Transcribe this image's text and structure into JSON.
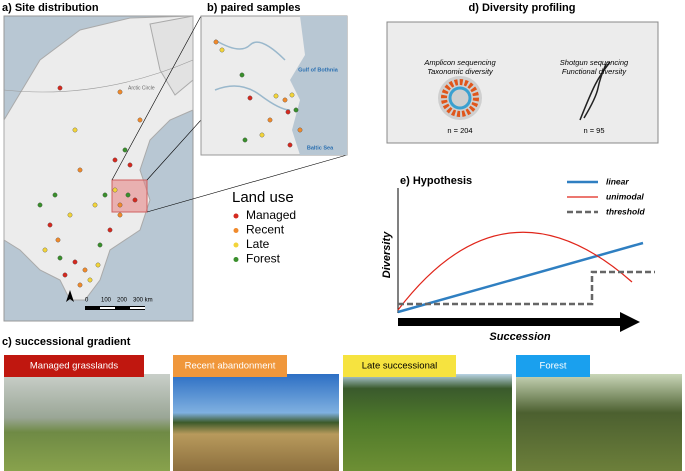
{
  "panel_a": {
    "title": "a) Site distribution",
    "arctic_label": "Arctic Circle",
    "scale_labels": [
      "0",
      "100",
      "200",
      "300 km"
    ]
  },
  "panel_b": {
    "title": "b) paired samples",
    "labels": [
      "Gulf of Bothnia",
      "Baltic Sea"
    ]
  },
  "land_use": {
    "title": "Land use",
    "items": [
      {
        "name": "Managed",
        "color": "#d42a20"
      },
      {
        "name": "Recent",
        "color": "#f08a2c"
      },
      {
        "name": "Late",
        "color": "#f2d43a"
      },
      {
        "name": "Forest",
        "color": "#3a8f2c"
      }
    ]
  },
  "panel_d": {
    "title": "d) Diversity profiling",
    "methods": [
      {
        "name": "Amplicon sequencing",
        "subtitle": "Taxonomic diversity",
        "n": "n = 204"
      },
      {
        "name": "Shotgun sequencing",
        "subtitle": "Functional diversity",
        "n": "n = 95"
      }
    ]
  },
  "panel_e": {
    "title": "e) Hypothesis",
    "y_label": "Diversity",
    "x_label": "Succession",
    "legend": [
      {
        "name": "linear",
        "color": "#2f7fc1"
      },
      {
        "name": "unimodal",
        "color": "#e0261b"
      },
      {
        "name": "threshold",
        "color": "#666666"
      }
    ]
  },
  "panel_c": {
    "title": "c) successional gradient",
    "stages": [
      {
        "name": "Managed grasslands",
        "color": "#c0170f",
        "text_color": "#ffffff"
      },
      {
        "name": "Recent abandonment",
        "color": "#f0973b",
        "text_color": "#ffffff"
      },
      {
        "name": "Late successional",
        "color": "#f6e33f",
        "text_color": "#000000"
      },
      {
        "name": "Forest",
        "color": "#1aa0ee",
        "text_color": "#ffffff"
      }
    ]
  }
}
